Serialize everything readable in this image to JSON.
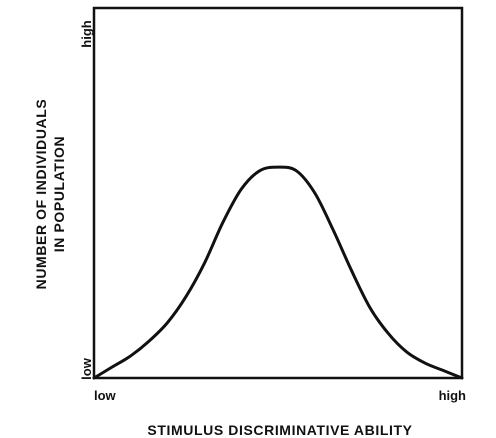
{
  "chart_data": {
    "type": "line",
    "title": "",
    "xlabel": "STIMULUS DISCRIMINATIVE ABILITY",
    "ylabel_lines": [
      "NUMBER OF INDIVIDUALS",
      "IN POPULATION"
    ],
    "x_tick_labels": {
      "low": "low",
      "high": "high"
    },
    "y_tick_labels": {
      "low": "low",
      "high": "high"
    },
    "xlim": [
      0,
      1
    ],
    "ylim": [
      0,
      1
    ],
    "grid": false,
    "series": [
      {
        "shape": "bell curve",
        "peak_x": 0.5,
        "peak_y": 0.57,
        "x": [
          0,
          0.05,
          0.1,
          0.15,
          0.2,
          0.25,
          0.3,
          0.35,
          0.4,
          0.45,
          0.5,
          0.55,
          0.6,
          0.65,
          0.7,
          0.75,
          0.8,
          0.85,
          0.9,
          0.95,
          1
        ],
        "y": [
          0,
          0.03,
          0.06,
          0.1,
          0.15,
          0.22,
          0.31,
          0.42,
          0.51,
          0.56,
          0.57,
          0.56,
          0.5,
          0.4,
          0.29,
          0.19,
          0.12,
          0.07,
          0.04,
          0.02,
          0
        ],
        "color": "#111111"
      }
    ]
  }
}
